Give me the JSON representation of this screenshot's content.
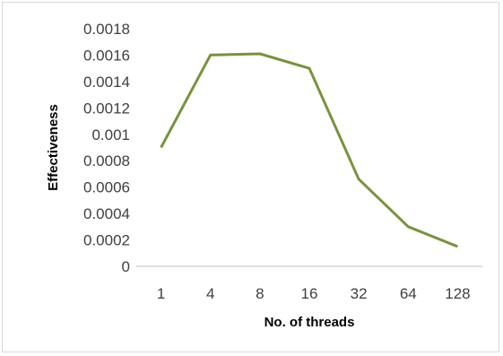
{
  "chart_data": {
    "type": "line",
    "title": "",
    "xlabel": "No. of threads",
    "ylabel": "Effectiveness",
    "categories": [
      "1",
      "4",
      "8",
      "16",
      "32",
      "64",
      "128"
    ],
    "series": [
      {
        "values": [
          0.0009,
          0.0016,
          0.00161,
          0.0015,
          0.00066,
          0.0003,
          0.00015
        ]
      }
    ],
    "ylim": [
      0,
      0.0018
    ],
    "yticks": [
      "0",
      "0.0002",
      "0.0004",
      "0.0006",
      "0.0008",
      "0.001",
      "0.0012",
      "0.0014",
      "0.0016",
      "0.0018"
    ],
    "grid": false,
    "legend": "none",
    "colors": {
      "line": "#77933c",
      "axis": "#bfbfbf",
      "text": "#404040"
    }
  }
}
